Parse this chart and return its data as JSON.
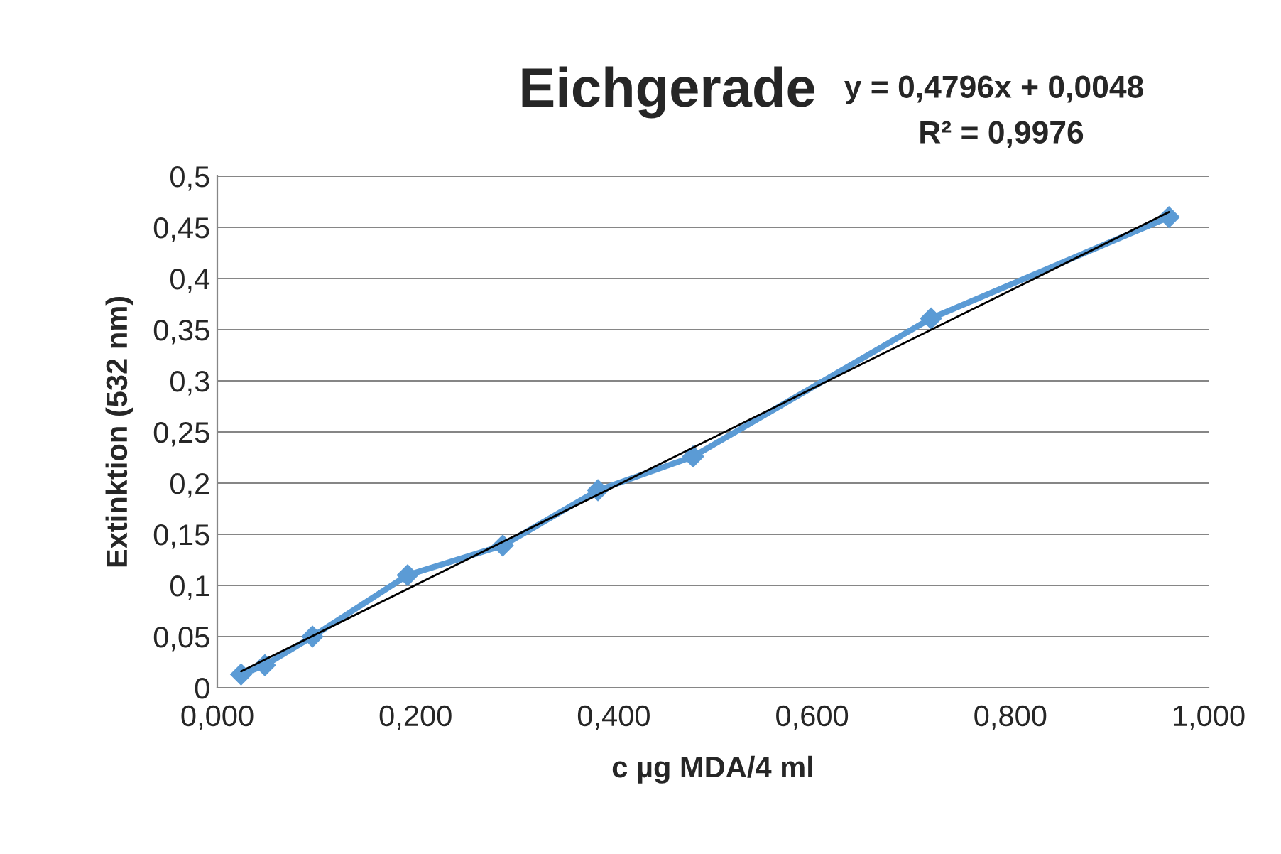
{
  "chart_data": {
    "type": "line",
    "title": "Eichgerade",
    "xlabel": "c µg MDA/4 ml",
    "ylabel": "Extinktion (532 nm)",
    "annotations": [
      "y = 0,4796x + 0,0048",
      "R² = 0,9976"
    ],
    "x": [
      0.024,
      0.048,
      0.096,
      0.192,
      0.288,
      0.384,
      0.48,
      0.72,
      0.96
    ],
    "series": [
      {
        "color": "#5b9bd5",
        "values": [
          0.013,
          0.022,
          0.05,
          0.11,
          0.139,
          0.193,
          0.226,
          0.361,
          0.46
        ],
        "marker": "diamond",
        "line_style": "solid"
      },
      {
        "color": "#000000",
        "x": [
          0.024,
          0.96
        ],
        "values": [
          0.016,
          0.465
        ],
        "marker": "none",
        "line_style": "solid"
      }
    ],
    "xlim": [
      0,
      1
    ],
    "ylim": [
      0,
      0.5
    ],
    "xticks": [
      {
        "value": 0,
        "label": "0,000"
      },
      {
        "value": 0.2,
        "label": "0,200"
      },
      {
        "value": 0.4,
        "label": "0,400"
      },
      {
        "value": 0.6,
        "label": "0,600"
      },
      {
        "value": 0.8,
        "label": "0,800"
      },
      {
        "value": 1,
        "label": "1,000"
      }
    ],
    "yticks": [
      0,
      {
        "value": 0.05,
        "label": "0,05"
      },
      {
        "value": 0.1,
        "label": "0,1"
      },
      {
        "value": 0.15,
        "label": "0,15"
      },
      {
        "value": 0.2,
        "label": "0,2"
      },
      {
        "value": 0.25,
        "label": "0,25"
      },
      {
        "value": 0.3,
        "label": "0,3"
      },
      {
        "value": 0.35,
        "label": "0,35"
      },
      {
        "value": 0.4,
        "label": "0,4"
      },
      {
        "value": 0.45,
        "label": "0,45"
      },
      {
        "value": 0.5,
        "label": "0,5"
      }
    ],
    "grid": "y",
    "legend": false
  }
}
